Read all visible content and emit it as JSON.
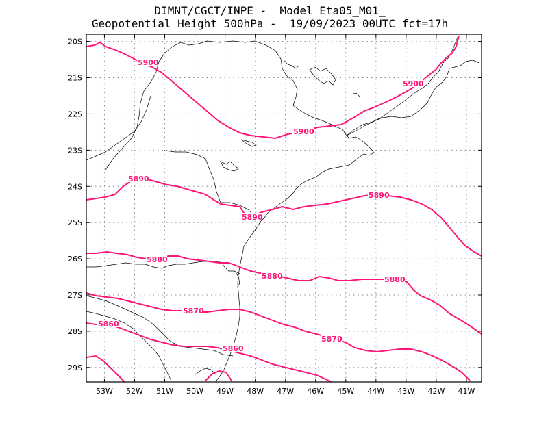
{
  "title": {
    "line1": "DIMNT/CGCT/INPE -  Model Eta05_M01_",
    "line2": "Geopotential Height 500hPa -  19/09/2023 00UTC fct=17h"
  },
  "colors": {
    "contour": "#ff1478",
    "coast": "#000000",
    "grid": "#888888",
    "frame": "#000000"
  },
  "axes": {
    "lat_labels": [
      "20S",
      "21S",
      "22S",
      "23S",
      "24S",
      "25S",
      "26S",
      "27S",
      "28S",
      "29S"
    ],
    "lon_labels": [
      "53W",
      "52W",
      "51W",
      "50W",
      "49W",
      "48W",
      "47W",
      "46W",
      "45W",
      "44W",
      "43W",
      "42W",
      "41W"
    ],
    "lon_range": [
      -53.6,
      -40.5
    ],
    "lat_range": [
      -29.4,
      -19.8
    ]
  },
  "contours": [
    {
      "value": 5900,
      "labels": [
        "5900",
        "5900",
        "5900"
      ]
    },
    {
      "value": 5890,
      "labels": [
        "5890",
        "5890",
        "5890"
      ]
    },
    {
      "value": 5880,
      "labels": [
        "5880",
        "5880",
        "5880"
      ]
    },
    {
      "value": 5870,
      "labels": [
        "5870",
        "5870"
      ]
    },
    {
      "value": 5860,
      "labels": [
        "5860",
        "5860"
      ]
    }
  ]
}
